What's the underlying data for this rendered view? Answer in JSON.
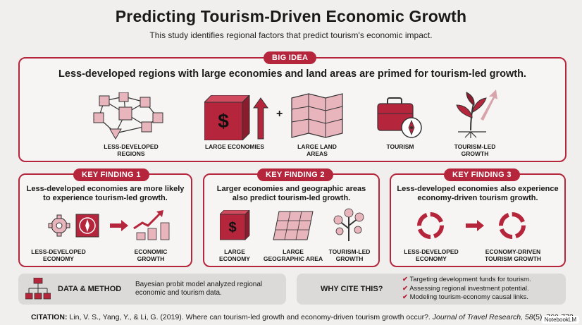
{
  "header": {
    "title": "Predicting Tourism-Driven Economic Growth",
    "subtitle": "This study identifies regional factors that predict tourism's economic impact."
  },
  "big_idea": {
    "label": "BIG IDEA",
    "headline": "Less-developed regions with large economies and land areas are primed for tourism-led growth.",
    "items": [
      {
        "caption_1": "LESS-DEVELOPED",
        "caption_2": "REGIONS",
        "icon": "network-cubes-icon"
      },
      {
        "caption_1": "LARGE ECONOMIES",
        "caption_2": "",
        "icon": "dollar-cube-icon"
      },
      {
        "caption_1": "LARGE LAND",
        "caption_2": "AREAS",
        "icon": "map-icon"
      },
      {
        "caption_1": "TOURISM",
        "caption_2": "",
        "icon": "suitcase-compass-icon"
      },
      {
        "caption_1": "TOURISM-LED",
        "caption_2": "GROWTH",
        "icon": "growing-plant-icon"
      }
    ],
    "plus": "+"
  },
  "finding1": {
    "label": "KEY FINDING 1",
    "line1": "Less-developed economies are more likely",
    "line2": "to experience tourism-led growth.",
    "cap_a1": "LESS-DEVELOPED",
    "cap_a2": "ECONOMY",
    "cap_b1": "ECONOMIC",
    "cap_b2": "GROWTH"
  },
  "finding2": {
    "label": "KEY FINDING 2",
    "line1": "Larger economies and geographic areas",
    "line2": "also predict tourism-led growth.",
    "cap_a1": "LARGE",
    "cap_a2": "ECONOMY",
    "cap_b1": "LARGE",
    "cap_b2": "GEOGRAPHIC AREA",
    "cap_c1": "TOURISM-LED",
    "cap_c2": "GROWTH"
  },
  "finding3": {
    "label": "KEY FINDING 3",
    "line1": "Less-developed economies also experience",
    "line2": "economy-driven tourism growth.",
    "cap_a1": "LESS-DEVELOPED",
    "cap_a2": "ECONOMY",
    "cap_b1": "ECONOMY-DRIVEN",
    "cap_b2": "TOURISM GROWTH"
  },
  "method": {
    "label": "DATA & METHOD",
    "text_1": "Bayesian probit model analyzed regional",
    "text_2": "economic and tourism data."
  },
  "why": {
    "label": "WHY CITE THIS?",
    "items": [
      "Targeting development funds for tourism.",
      "Assessing regional investment potential.",
      "Modeling tourism-economy causal links."
    ]
  },
  "citation": {
    "label": "CITATION:",
    "text": " Lin, V. S., Yang, Y., & Li, G. (2019). Where can tourism-led growth and economy-driven tourism growth occur?. ",
    "journal": "Journal of Travel Research, 58",
    "tail": "(5), 760-773."
  },
  "brand": "NotebookLM",
  "colors": {
    "accent": "#b5253c",
    "light_accent": "#e9b5bd",
    "background": "#f1efed"
  }
}
